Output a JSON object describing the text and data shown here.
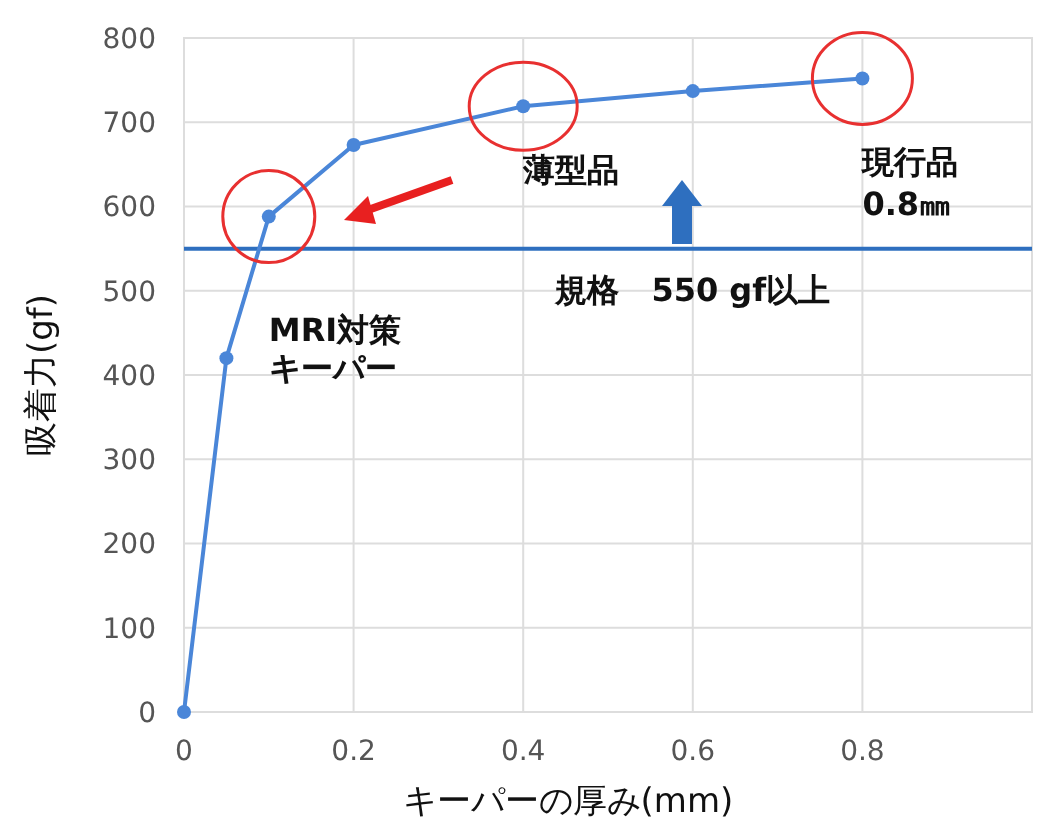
{
  "chart_data": {
    "type": "line",
    "xlabel": "キーパーの厚み(mm)",
    "ylabel": "吸着力(gf)",
    "x": [
      0,
      0.05,
      0.1,
      0.2,
      0.4,
      0.6,
      0.8
    ],
    "series": [
      {
        "color": "#4a86d8",
        "values": [
          0,
          420,
          588,
          673,
          719,
          737,
          752
        ]
      }
    ],
    "xlim": [
      0,
      1
    ],
    "xticks": [
      0,
      0.2,
      0.4,
      0.6,
      0.8
    ],
    "ylim": [
      0,
      800
    ],
    "yticks": [
      0,
      100,
      200,
      300,
      400,
      500,
      600,
      700,
      800
    ],
    "grid": true,
    "marker": "circle",
    "line_style": "solid",
    "ref_lines": [
      {
        "axis": "y",
        "value": 550,
        "label": "規格　550 gf以上",
        "color": "#2e6fbf"
      }
    ],
    "annotations": [
      "薄型品",
      "現行品",
      "0.8㎜",
      "MRI対策",
      "キーパー"
    ]
  }
}
